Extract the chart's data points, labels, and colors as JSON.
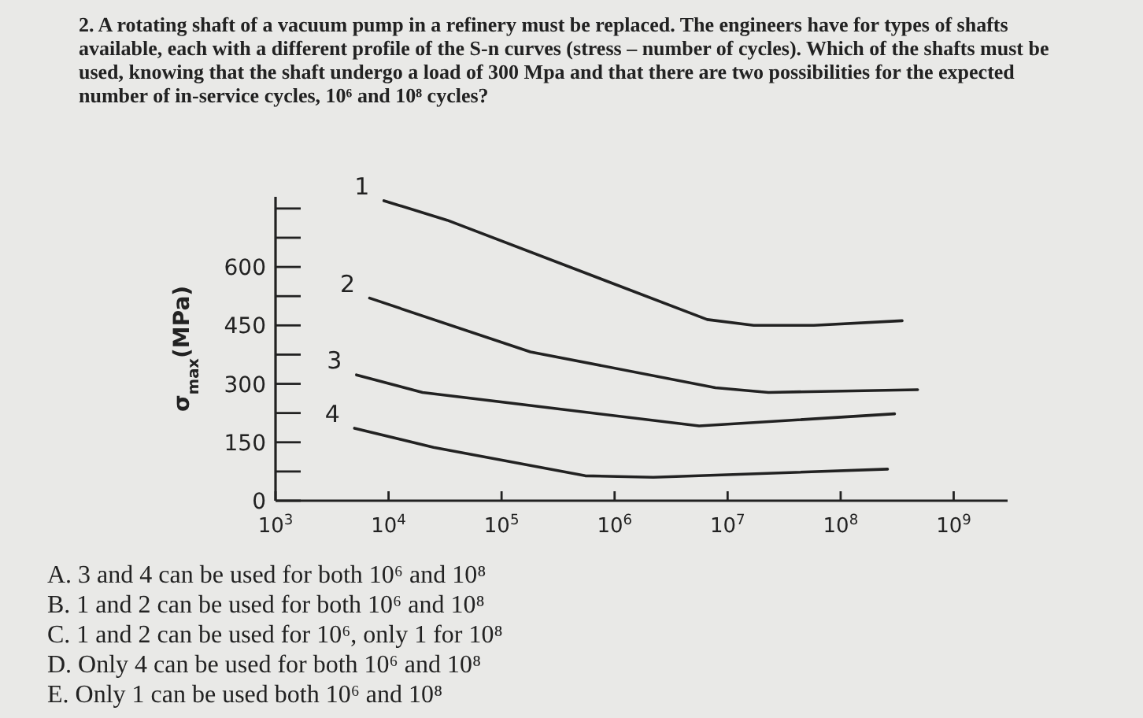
{
  "chart_data": {
    "type": "line",
    "title": "2. A rotating shaft of a vacuum pump in a refinery must be replaced. The engineers have for types of shafts available, each with a different profile of the S-n curves (stress – number of cycles). Which of the shafts must be used, knowing that the shaft undergo a load of 300 Mpa and that there are two possibilities for the expected number of in-service cycles, 10⁶ and 10⁸ cycles?",
    "ylabel": "σ$_{max}$(MPa)",
    "log": "x",
    "xlim": [
      1000,
      3000000000
    ],
    "xticks": [
      {
        "value": 1000,
        "label": "10$^{3}$"
      },
      {
        "value": 10000,
        "label": "10$^{4}$"
      },
      {
        "value": 100000,
        "label": "10$^{5}$"
      },
      {
        "value": 1000000,
        "label": "10$^{6}$"
      },
      {
        "value": 10000000,
        "label": "10$^{7}$"
      },
      {
        "value": 100000000,
        "label": "10$^{8}$"
      },
      {
        "value": 1000000000,
        "label": "10$^{9}$"
      }
    ],
    "ylim": [
      0,
      780
    ],
    "yticks": [
      0,
      {
        "value": 75,
        "label": null
      },
      150,
      {
        "value": 225,
        "label": null
      },
      300,
      {
        "value": 375,
        "label": null
      },
      450,
      {
        "value": 525,
        "label": null
      },
      600,
      {
        "value": 675,
        "label": null
      },
      {
        "value": 750,
        "label": null
      }
    ],
    "marker": "none",
    "legend": "left",
    "series": [
      {
        "name": "1",
        "color": "#222222",
        "x": [
          9100,
          33000,
          6600000,
          17000000,
          58000000,
          350000000
        ],
        "values": [
          770,
          720,
          465,
          450,
          450,
          462
        ]
      },
      {
        "name": "2",
        "color": "#222222",
        "x": [
          6800,
          180000,
          7800000,
          23000000,
          480000000
        ],
        "values": [
          520,
          382,
          290,
          278,
          285
        ]
      },
      {
        "name": "3",
        "color": "#222222",
        "x": [
          5200,
          20000,
          5600000,
          300000000
        ],
        "values": [
          323,
          278,
          192,
          223
        ]
      },
      {
        "name": "4",
        "color": "#222222",
        "x": [
          5000,
          25000,
          550000,
          2200000,
          260000000
        ],
        "values": [
          186,
          137,
          64,
          60,
          81
        ]
      }
    ],
    "annotations": [
      "A.  3 and 4 can be used for both 10⁶ and 10⁸",
      "B.  1 and 2 can be used for both 10⁶ and 10⁸",
      "C.  1 and 2 can be used for 10⁶, only 1 for 10⁸",
      "D.  Only 4 can be used for both 10⁶ and 10⁸",
      "E.  Only 1 can be used both 10⁶ and 10⁸"
    ]
  }
}
